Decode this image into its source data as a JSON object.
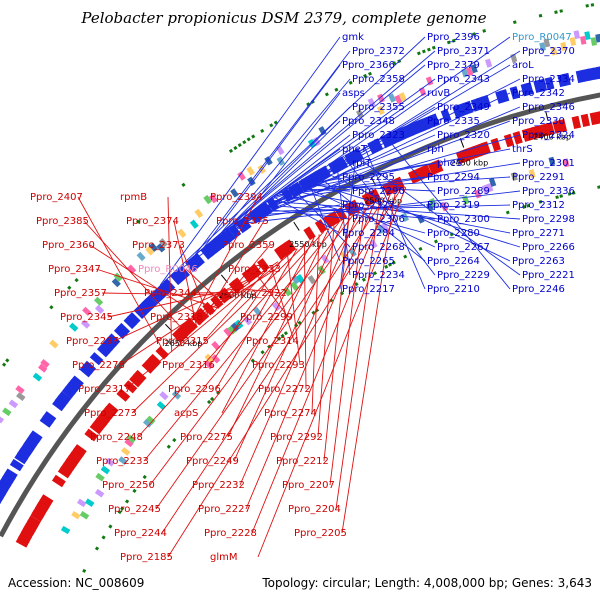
{
  "title": "Pelobacter propionicus DSM 2379, complete genome",
  "footer": {
    "accession": "Accession: NC_008609",
    "summary": "Topology: circular; Length: 4,008,000 bp; Genes: 3,643"
  },
  "colors": {
    "backbone": "#555555",
    "forward_gene": "#1c2ee0",
    "reverse_gene": "#e01010",
    "forward_label": "#0000cc",
    "reverse_label": "#cc0000",
    "rna_forward_label": "#3399cc",
    "rna_reverse_label": "#ee88bb",
    "tick": "#117711"
  },
  "kbp_ticks": [
    {
      "text": "2650 kbp",
      "angle": -44
    },
    {
      "text": "2600 kbp",
      "angle": -39
    },
    {
      "text": "2550 kbp",
      "angle": -33
    },
    {
      "text": "2500 kbp",
      "angle": -27
    },
    {
      "text": "2450 kbp",
      "angle": -20.5
    },
    {
      "text": "2400 kbp",
      "angle": -14.5
    },
    {
      "text": "2350 kbp",
      "angle": -8.5
    }
  ],
  "forward_labels": [
    {
      "text": "gmk",
      "angle": -42.5,
      "kind": "gene"
    },
    {
      "text": "Ppro_2396",
      "angle": -42.2,
      "kind": "gene"
    },
    {
      "text": "Ppro_R0047",
      "angle": -41.8,
      "kind": "rna"
    },
    {
      "text": "Ppro_2372",
      "angle": -39.5,
      "kind": "gene"
    },
    {
      "text": "Ppro_2371",
      "angle": -39.3,
      "kind": "gene"
    },
    {
      "text": "Ppro_2370",
      "angle": -39.1,
      "kind": "gene"
    },
    {
      "text": "Ppro_2366",
      "angle": -38.8,
      "kind": "gene"
    },
    {
      "text": "Ppro_2379",
      "angle": -40.3,
      "kind": "gene"
    },
    {
      "text": "aroL",
      "angle": -37.9,
      "kind": "gene"
    },
    {
      "text": "Ppro_2358",
      "angle": -37.6,
      "kind": "gene"
    },
    {
      "text": "Ppro_2343",
      "angle": -36.9,
      "kind": "gene"
    },
    {
      "text": "Ppro_2334",
      "angle": -36.2,
      "kind": "gene"
    },
    {
      "text": "asps",
      "angle": -35.6,
      "kind": "gene"
    },
    {
      "text": "ruvB",
      "angle": -35.2,
      "kind": "gene"
    },
    {
      "text": "Ppro_2342",
      "angle": -36.6,
      "kind": "gene"
    },
    {
      "text": "Ppro_2355",
      "angle": -37.3,
      "kind": "gene"
    },
    {
      "text": "Ppro_2349",
      "angle": -37.0,
      "kind": "gene"
    },
    {
      "text": "Ppro_2346",
      "angle": -36.8,
      "kind": "gene"
    },
    {
      "text": "Ppro_2348",
      "angle": -36.4,
      "kind": "gene"
    },
    {
      "text": "Ppro_2335",
      "angle": -36.1,
      "kind": "gene"
    },
    {
      "text": "Ppro_2330",
      "angle": -35.9,
      "kind": "gene"
    },
    {
      "text": "Ppro_2323",
      "angle": -35.5,
      "kind": "gene"
    },
    {
      "text": "Ppro_2320",
      "angle": -35.0,
      "kind": "gene"
    },
    {
      "text": "Ppro_2324",
      "angle": -34.7,
      "kind": "gene"
    },
    {
      "text": "pheT",
      "angle": -34.4,
      "kind": "gene"
    },
    {
      "text": "rph",
      "angle": -33.2,
      "kind": "gene"
    },
    {
      "text": "thrS",
      "angle": -32.7,
      "kind": "gene"
    },
    {
      "text": "rplT",
      "angle": -32.3,
      "kind": "gene"
    },
    {
      "text": "pheS",
      "angle": -32.0,
      "kind": "gene"
    },
    {
      "text": "Ppro_2301",
      "angle": -33.8,
      "kind": "gene"
    },
    {
      "text": "Ppro_2295",
      "angle": -33.5,
      "kind": "gene"
    },
    {
      "text": "Ppro_2294",
      "angle": -33.0,
      "kind": "gene"
    },
    {
      "text": "Ppro_2291",
      "angle": -32.6,
      "kind": "gene"
    },
    {
      "text": "Ppro_2290",
      "angle": -32.2,
      "kind": "gene"
    },
    {
      "text": "Ppro_2289",
      "angle": -31.7,
      "kind": "gene"
    },
    {
      "text": "Ppro_2336",
      "angle": -36.3,
      "kind": "gene"
    },
    {
      "text": "Ppro_2327",
      "angle": -35.8,
      "kind": "gene"
    },
    {
      "text": "Ppro_2319",
      "angle": -35.3,
      "kind": "gene"
    },
    {
      "text": "Ppro_2312",
      "angle": -34.9,
      "kind": "gene"
    },
    {
      "text": "Ppro_2306",
      "angle": -34.5,
      "kind": "gene"
    },
    {
      "text": "Ppro_2300",
      "angle": -34.1,
      "kind": "gene"
    },
    {
      "text": "Ppro_2298",
      "angle": -33.7,
      "kind": "gene"
    },
    {
      "text": "Ppro_2284",
      "angle": -33.2,
      "kind": "gene"
    },
    {
      "text": "Ppro_2280",
      "angle": -32.8,
      "kind": "gene"
    },
    {
      "text": "Ppro_2271",
      "angle": -32.3,
      "kind": "gene"
    },
    {
      "text": "Ppro_2268",
      "angle": -31.9,
      "kind": "gene"
    },
    {
      "text": "Ppro_2267",
      "angle": -31.5,
      "kind": "gene"
    },
    {
      "text": "Ppro_2266",
      "angle": -31.1,
      "kind": "gene"
    },
    {
      "text": "Ppro_2265",
      "angle": -30.7,
      "kind": "gene"
    },
    {
      "text": "Ppro_2264",
      "angle": -30.2,
      "kind": "gene"
    },
    {
      "text": "Ppro_2263",
      "angle": -29.8,
      "kind": "gene"
    },
    {
      "text": "Ppro_2234",
      "angle": -28.5,
      "kind": "gene"
    },
    {
      "text": "Ppro_2229",
      "angle": -28.0,
      "kind": "gene"
    },
    {
      "text": "Ppro_2221",
      "angle": -27.5,
      "kind": "gene"
    },
    {
      "text": "Ppro_2217",
      "angle": -27.0,
      "kind": "gene"
    },
    {
      "text": "Ppro_2210",
      "angle": -26.5,
      "kind": "gene"
    },
    {
      "text": "Ppro_2246",
      "angle": -25.0,
      "kind": "gene"
    }
  ],
  "reverse_labels": [
    {
      "text": "Ppro_2407",
      "angle": -45.5,
      "kind": "gene"
    },
    {
      "text": "rpmB",
      "angle": -45.0,
      "kind": "gene"
    },
    {
      "text": "Ppro_2394",
      "angle": -44.2,
      "kind": "gene"
    },
    {
      "text": "Ppro_2385",
      "angle": -43.4,
      "kind": "gene"
    },
    {
      "text": "Ppro_2374",
      "angle": -42.6,
      "kind": "gene"
    },
    {
      "text": "Ppro_2375",
      "angle": -42.3,
      "kind": "gene"
    },
    {
      "text": "Ppro_2360",
      "angle": -41.8,
      "kind": "gene"
    },
    {
      "text": "Ppro_2373",
      "angle": -41.5,
      "kind": "gene"
    },
    {
      "text": "Ppro_2359",
      "angle": -41.2,
      "kind": "gene"
    },
    {
      "text": "Ppro_2347",
      "angle": -40.6,
      "kind": "gene"
    },
    {
      "text": "Ppro_R0046",
      "angle": -40.2,
      "kind": "rna"
    },
    {
      "text": "Ppro_2333",
      "angle": -39.6,
      "kind": "gene"
    },
    {
      "text": "Ppro_2357",
      "angle": -39.2,
      "kind": "gene"
    },
    {
      "text": "Ppro_2344",
      "angle": -38.9,
      "kind": "gene"
    },
    {
      "text": "Ppro_2322",
      "angle": -38.5,
      "kind": "gene"
    },
    {
      "text": "Ppro_2345",
      "angle": -38.2,
      "kind": "gene"
    },
    {
      "text": "Ppro_2318",
      "angle": -37.8,
      "kind": "gene"
    },
    {
      "text": "Ppro_2299",
      "angle": -37.1,
      "kind": "gene"
    },
    {
      "text": "Ppro_2297",
      "angle": -36.7,
      "kind": "gene"
    },
    {
      "text": "Ppro_2315",
      "angle": -36.4,
      "kind": "gene"
    },
    {
      "text": "Ppro_2314",
      "angle": -36.0,
      "kind": "gene"
    },
    {
      "text": "Ppro_2278",
      "angle": -35.4,
      "kind": "gene"
    },
    {
      "text": "Ppro_2316",
      "angle": -35.0,
      "kind": "gene"
    },
    {
      "text": "Ppro_2293",
      "angle": -34.6,
      "kind": "gene"
    },
    {
      "text": "Ppro_2317",
      "angle": -34.2,
      "kind": "gene"
    },
    {
      "text": "Ppro_2296",
      "angle": -33.8,
      "kind": "gene"
    },
    {
      "text": "Ppro_2272",
      "angle": -33.2,
      "kind": "gene"
    },
    {
      "text": "Ppro_2273",
      "angle": -32.8,
      "kind": "gene"
    },
    {
      "text": "acpS",
      "angle": -32.4,
      "kind": "gene"
    },
    {
      "text": "Ppro_2274",
      "angle": -32.0,
      "kind": "gene"
    },
    {
      "text": "Ppro_2248",
      "angle": -31.6,
      "kind": "gene"
    },
    {
      "text": "Ppro_2275",
      "angle": -31.2,
      "kind": "gene"
    },
    {
      "text": "Ppro_2292",
      "angle": -30.8,
      "kind": "gene"
    },
    {
      "text": "Ppro_2233",
      "angle": -30.4,
      "kind": "gene"
    },
    {
      "text": "Ppro_2249",
      "angle": -30.0,
      "kind": "gene"
    },
    {
      "text": "Ppro_2212",
      "angle": -29.6,
      "kind": "gene"
    },
    {
      "text": "Ppro_2250",
      "angle": -29.2,
      "kind": "gene"
    },
    {
      "text": "Ppro_2232",
      "angle": -28.8,
      "kind": "gene"
    },
    {
      "text": "Ppro_2207",
      "angle": -28.4,
      "kind": "gene"
    },
    {
      "text": "Ppro_2245",
      "angle": -28.0,
      "kind": "gene"
    },
    {
      "text": "Ppro_2227",
      "angle": -27.6,
      "kind": "gene"
    },
    {
      "text": "Ppro_2204",
      "angle": -27.2,
      "kind": "gene"
    },
    {
      "text": "Ppro_2244",
      "angle": -26.8,
      "kind": "gene"
    },
    {
      "text": "Ppro_2228",
      "angle": -26.4,
      "kind": "gene"
    },
    {
      "text": "Ppro_2205",
      "angle": -26.0,
      "kind": "gene"
    },
    {
      "text": "Ppro_2185",
      "angle": -25.6,
      "kind": "gene"
    },
    {
      "text": "glmM",
      "angle": -25.2,
      "kind": "gene"
    }
  ]
}
